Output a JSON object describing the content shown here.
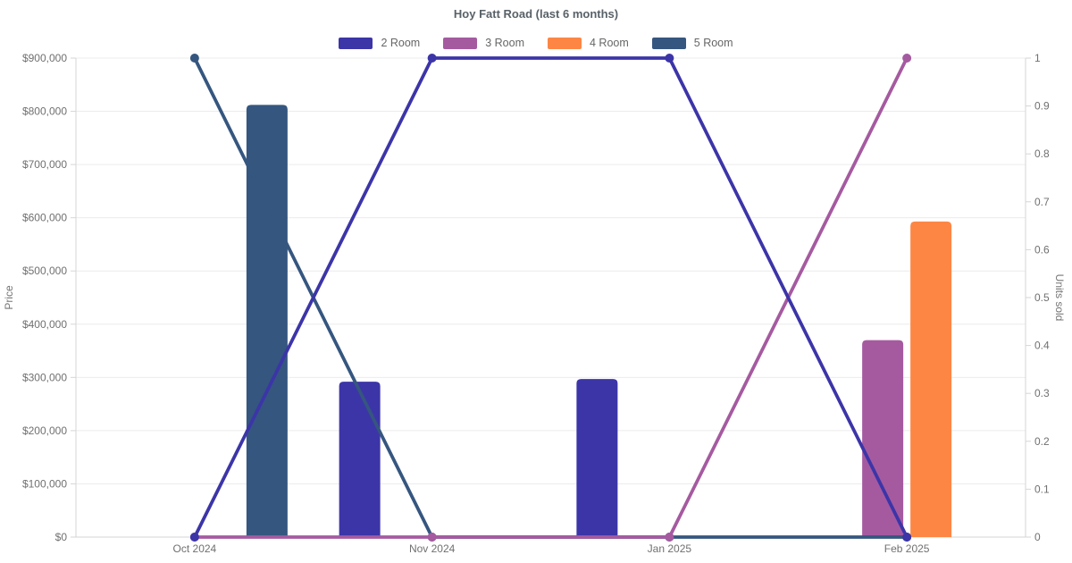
{
  "chart_data": {
    "type": "combo-bar-line",
    "title": "Hoy Fatt Road (last 6 months)",
    "categories": [
      "Oct 2024",
      "Nov 2024",
      "Jan 2025",
      "Feb 2025"
    ],
    "series": [
      {
        "name": "2 Room",
        "color": "#3C35A8",
        "bars_price": [
          null,
          292000,
          297000,
          null
        ],
        "line_units": [
          0,
          1,
          1,
          0
        ]
      },
      {
        "name": "3 Room",
        "color": "#A55AA0",
        "bars_price": [
          null,
          null,
          null,
          370000
        ],
        "line_units": [
          0,
          0,
          0,
          1
        ]
      },
      {
        "name": "4 Room",
        "color": "#FD8644",
        "bars_price": [
          null,
          null,
          null,
          593000
        ],
        "line_units": null
      },
      {
        "name": "5 Room",
        "color": "#35567F",
        "bars_price": [
          812000,
          null,
          null,
          null
        ],
        "line_units": [
          1,
          0,
          0,
          0
        ]
      }
    ],
    "left_axis": {
      "title": "Price",
      "min": 0,
      "max": 900000,
      "tick_step": 100000,
      "tick_prefix": "$"
    },
    "right_axis": {
      "title": "Units sold",
      "min": 0,
      "max": 1,
      "tick_step": 0.1
    },
    "legend_position": "top",
    "grid": "horizontal",
    "colors": {
      "grid": "#ECECEC",
      "axis": "#D6D6D6",
      "tick_text": "#707070",
      "title_text": "#586168",
      "legend_text": "#666666",
      "background": "#FFFFFF"
    }
  }
}
